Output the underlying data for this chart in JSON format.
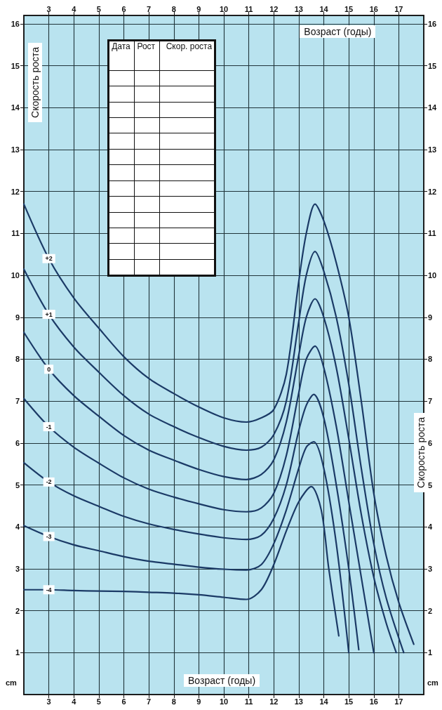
{
  "chart_data": {
    "type": "line",
    "xlabel": "Возраст (годы)",
    "x2label": "Возраст (годы)",
    "ylabel": "Скорость роста",
    "y2label": "Скорость роста",
    "xlim": [
      2,
      18
    ],
    "xticks": [
      3,
      4,
      5,
      6,
      7,
      8,
      9,
      10,
      11,
      12,
      13,
      14,
      15,
      16,
      17
    ],
    "x2lim": [
      2,
      18
    ],
    "x2ticks": [
      3,
      4,
      5,
      6,
      7,
      8,
      9,
      10,
      11,
      12,
      13,
      14,
      15,
      16,
      17
    ],
    "ylim": [
      0,
      16.2
    ],
    "yticks": [
      1,
      2,
      3,
      4,
      5,
      6,
      7,
      8,
      9,
      10,
      11,
      12,
      13,
      14,
      15,
      16
    ],
    "y2lim": [
      0,
      16.2
    ],
    "y2ticks": [
      1,
      2,
      3,
      4,
      5,
      6,
      7,
      8,
      9,
      10,
      11,
      12,
      13,
      14,
      15,
      16
    ],
    "grid": true,
    "legend": false,
    "marker": "none",
    "line_style": "solid",
    "annotations": [
      "Дата",
      "Рост",
      "Скор. роста",
      "cm",
      "cm"
    ],
    "series": [
      {
        "name": "+2",
        "color": "#1b3a66",
        "x": [
          2,
          3,
          4,
          5,
          6,
          7,
          8,
          9,
          10,
          10.9,
          11.5,
          12,
          12.5,
          13,
          13.3,
          13.65,
          14,
          14.5,
          15,
          15.5,
          16,
          16.5,
          17,
          17.6
        ],
        "values": [
          11.7,
          10.4,
          9.46,
          8.74,
          8.06,
          7.54,
          7.18,
          6.86,
          6.6,
          6.5,
          6.6,
          6.8,
          7.64,
          9.86,
          11.0,
          11.7,
          11.3,
          10.3,
          9.0,
          7.0,
          4.8,
          3.3,
          2.2,
          1.2
        ]
      },
      {
        "name": "+1",
        "color": "#1b3a66",
        "x": [
          2,
          3,
          4,
          5,
          6,
          7,
          8,
          9,
          10,
          10.9,
          11.5,
          12,
          12.5,
          13,
          13.3,
          13.65,
          14,
          14.5,
          15,
          15.5,
          16,
          16.5,
          17.2
        ],
        "values": [
          10.15,
          9.07,
          8.29,
          7.69,
          7.13,
          6.69,
          6.39,
          6.13,
          5.92,
          5.83,
          5.9,
          6.2,
          7.0,
          8.9,
          10.0,
          10.57,
          10.1,
          9.0,
          7.4,
          5.4,
          3.6,
          2.3,
          1.0
        ]
      },
      {
        "name": "0",
        "color": "#1b3a66",
        "x": [
          2,
          3,
          4,
          5,
          6,
          7,
          8,
          9,
          10,
          10.9,
          11.5,
          12,
          12.5,
          13,
          13.3,
          13.65,
          14,
          14.5,
          15,
          15.5,
          16,
          16.5,
          16.9
        ],
        "values": [
          8.64,
          7.76,
          7.13,
          6.64,
          6.18,
          5.83,
          5.59,
          5.37,
          5.2,
          5.13,
          5.25,
          5.6,
          6.5,
          8.1,
          9.0,
          9.44,
          9.0,
          7.8,
          6.1,
          4.3,
          2.8,
          1.7,
          1.0
        ]
      },
      {
        "name": "-1",
        "color": "#1b3a66",
        "x": [
          2,
          3,
          4,
          5,
          6,
          7,
          8,
          9,
          10,
          10.9,
          11.5,
          12,
          12.5,
          13,
          13.3,
          13.65,
          14,
          14.5,
          15,
          15.5,
          16
        ],
        "values": [
          7.06,
          6.39,
          5.9,
          5.52,
          5.17,
          4.9,
          4.71,
          4.55,
          4.41,
          4.36,
          4.45,
          4.8,
          5.7,
          7.2,
          8.0,
          8.31,
          7.8,
          6.4,
          4.6,
          2.8,
          1.0
        ]
      },
      {
        "name": "-2",
        "color": "#1b3a66",
        "x": [
          2,
          3,
          4,
          5,
          6,
          7,
          8,
          9,
          10,
          10.9,
          11.5,
          12,
          12.5,
          13,
          13.3,
          13.6,
          14,
          14.5,
          15,
          15.4
        ],
        "values": [
          5.53,
          5.07,
          4.74,
          4.49,
          4.25,
          4.07,
          3.94,
          3.83,
          3.74,
          3.7,
          3.8,
          4.2,
          5.0,
          6.3,
          6.9,
          7.16,
          6.6,
          5.0,
          3.0,
          1.07
        ]
      },
      {
        "name": "-3",
        "color": "#1b3a66",
        "x": [
          2,
          3,
          4,
          5,
          6,
          7,
          8,
          9,
          10,
          10.9,
          11.5,
          12,
          12.5,
          13,
          13.3,
          13.6,
          14,
          14.5,
          15
        ],
        "values": [
          4.03,
          3.77,
          3.57,
          3.43,
          3.29,
          3.18,
          3.11,
          3.04,
          2.99,
          2.97,
          3.1,
          3.6,
          4.4,
          5.4,
          5.9,
          6.03,
          5.4,
          3.6,
          1.0
        ]
      },
      {
        "name": "-4",
        "color": "#1b3a66",
        "x": [
          2,
          3,
          4,
          5,
          6,
          7,
          8,
          9,
          10,
          10.9,
          11.5,
          12,
          12.5,
          13,
          13.5,
          13.9,
          14.2,
          14.6
        ],
        "values": [
          2.5,
          2.5,
          2.48,
          2.47,
          2.46,
          2.44,
          2.42,
          2.38,
          2.32,
          2.27,
          2.5,
          3.1,
          3.9,
          4.6,
          4.96,
          4.4,
          3.0,
          1.4
        ]
      }
    ]
  }
}
